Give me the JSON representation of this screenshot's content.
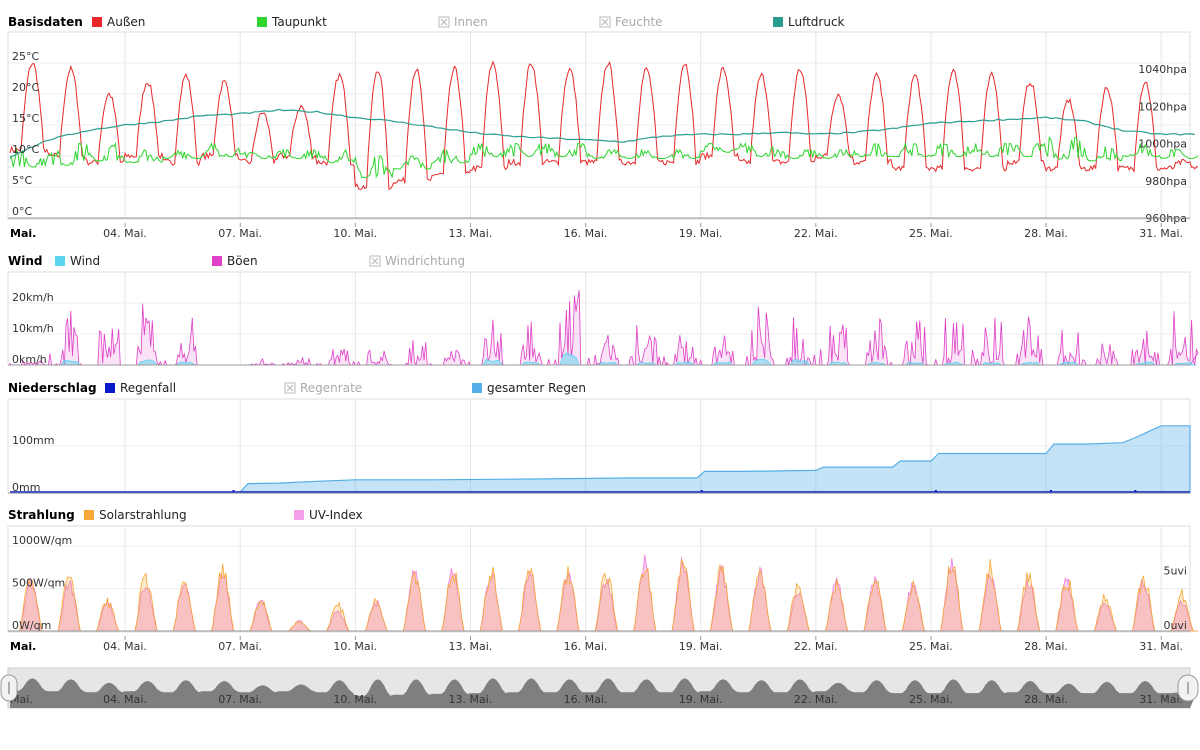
{
  "chart_data": [
    {
      "type": "line",
      "title": "Basisdaten",
      "legend": [
        {
          "name": "Außen",
          "color": "#e8282a",
          "visible": true
        },
        {
          "name": "Taupunkt",
          "color": "#2fd42f",
          "visible": true
        },
        {
          "name": "Innen",
          "color": "#bbbbbb",
          "visible": false
        },
        {
          "name": "Feuchte",
          "color": "#bbbbbb",
          "visible": false
        },
        {
          "name": "Luftdruck",
          "color": "#2a9d8f",
          "visible": true
        }
      ],
      "y_left": {
        "ticks": [
          "0°C",
          "5°C",
          "10°C",
          "15°C",
          "20°C",
          "25°C"
        ],
        "range": [
          0,
          30
        ]
      },
      "y_right": {
        "ticks": [
          "960hpa",
          "980hpa",
          "1000hpa",
          "1020hpa",
          "1040hpa"
        ],
        "range": [
          960,
          1060
        ]
      },
      "x": {
        "ticks": [
          "Mai.",
          "04. Mai.",
          "07. Mai.",
          "10. Mai.",
          "13. Mai.",
          "16. Mai.",
          "19. Mai.",
          "22. Mai.",
          "25. Mai.",
          "28. Mai.",
          "31. Mai."
        ],
        "range": [
          "01. Mai.",
          "31. Mai."
        ]
      },
      "series": [
        {
          "name": "Außen",
          "daily_low_high": [
            [
              11,
              25
            ],
            [
              10,
              24
            ],
            [
              9,
              20
            ],
            [
              10,
              22
            ],
            [
              9,
              23
            ],
            [
              10,
              22
            ],
            [
              9,
              17
            ],
            [
              10,
              18
            ],
            [
              9,
              23
            ],
            [
              5,
              24
            ],
            [
              6,
              24
            ],
            [
              7,
              24
            ],
            [
              8,
              25
            ],
            [
              9,
              25
            ],
            [
              9,
              24
            ],
            [
              9,
              25
            ],
            [
              9,
              24
            ],
            [
              9,
              25
            ],
            [
              10,
              24
            ],
            [
              9,
              23
            ],
            [
              9,
              24
            ],
            [
              10,
              20
            ],
            [
              9,
              23
            ],
            [
              8,
              23
            ],
            [
              8,
              24
            ],
            [
              8,
              23
            ],
            [
              9,
              22
            ],
            [
              8,
              19
            ],
            [
              8,
              21
            ],
            [
              8,
              22
            ],
            [
              8,
              9
            ]
          ]
        },
        {
          "name": "Taupunkt",
          "daily_range": [
            [
              7,
              11
            ],
            [
              7,
              12
            ],
            [
              8,
              12
            ],
            [
              8,
              11
            ],
            [
              9,
              11
            ],
            [
              9,
              12
            ],
            [
              9,
              11
            ],
            [
              9,
              11
            ],
            [
              8,
              11
            ],
            [
              5,
              10
            ],
            [
              7,
              10
            ],
            [
              8,
              11
            ],
            [
              9,
              12
            ],
            [
              9,
              12
            ],
            [
              9,
              12
            ],
            [
              9,
              11
            ],
            [
              9,
              11
            ],
            [
              9,
              11
            ],
            [
              10,
              12
            ],
            [
              9,
              12
            ],
            [
              9,
              11
            ],
            [
              9,
              11
            ],
            [
              9,
              12
            ],
            [
              9,
              12
            ],
            [
              9,
              12
            ],
            [
              9,
              12
            ],
            [
              9,
              12
            ],
            [
              8,
              13
            ],
            [
              8,
              12
            ],
            [
              9,
              12
            ],
            [
              9,
              11
            ]
          ]
        },
        {
          "name": "Luftdruck",
          "daily": [
            993,
            1002,
            1007,
            1010,
            1012,
            1015,
            1016,
            1018,
            1017,
            1014,
            1012,
            1009,
            1006,
            1004,
            1003,
            1002,
            1001,
            1004,
            1005,
            1005,
            1006,
            1005,
            1006,
            1008,
            1011,
            1012,
            1013,
            1014,
            1012,
            1007,
            1005
          ]
        }
      ]
    },
    {
      "type": "area",
      "title": "Wind",
      "legend": [
        {
          "name": "Wind",
          "color": "#5bd4ee",
          "visible": true
        },
        {
          "name": "Böen",
          "color": "#e040c8",
          "visible": true
        },
        {
          "name": "Windrichtung",
          "color": "#bbbbbb",
          "visible": false
        }
      ],
      "y": {
        "ticks": [
          "0km/h",
          "10km/h",
          "20km/h"
        ],
        "range": [
          0,
          30
        ]
      },
      "series": [
        {
          "name": "Böen",
          "daily_peak": [
            2,
            20,
            13,
            20,
            17,
            0,
            2,
            3,
            6,
            5,
            10,
            8,
            15,
            16,
            26,
            11,
            13,
            10,
            17,
            20,
            21,
            17,
            16,
            15,
            17,
            17,
            18,
            14,
            10,
            17,
            18
          ]
        },
        {
          "name": "Wind",
          "daily_peak": [
            0,
            2,
            0,
            2,
            1,
            0,
            0,
            0,
            0,
            0,
            0,
            0,
            2,
            1,
            4,
            1,
            1,
            1,
            1,
            2,
            2,
            1,
            1,
            1,
            1,
            1,
            1,
            1,
            0,
            1,
            1
          ]
        }
      ]
    },
    {
      "type": "area",
      "title": "Niederschlag",
      "legend": [
        {
          "name": "Regenfall",
          "color": "#0a1ac8",
          "visible": true
        },
        {
          "name": "Regenrate",
          "color": "#bbbbbb",
          "visible": false
        },
        {
          "name": "gesamter Regen",
          "color": "#55aee8",
          "visible": true
        }
      ],
      "y": {
        "ticks": [
          "0mm",
          "100mm"
        ],
        "range": [
          0,
          200
        ]
      },
      "series": [
        {
          "name": "gesamter Regen",
          "steps": [
            [
              1,
              0
            ],
            [
              6.0,
              0
            ],
            [
              6.8,
              2
            ],
            [
              7.0,
              2
            ],
            [
              7.2,
              20
            ],
            [
              8,
              21
            ],
            [
              9,
              25
            ],
            [
              10,
              28
            ],
            [
              12,
              28
            ],
            [
              15,
              30
            ],
            [
              17,
              32
            ],
            [
              18.9,
              32
            ],
            [
              19.1,
              46
            ],
            [
              20,
              46
            ],
            [
              22.0,
              48
            ],
            [
              22.2,
              55
            ],
            [
              24.0,
              55
            ],
            [
              24.2,
              68
            ],
            [
              25.0,
              68
            ],
            [
              25.2,
              84
            ],
            [
              28.0,
              84
            ],
            [
              28.2,
              104
            ],
            [
              29,
              104
            ],
            [
              30,
              107
            ],
            [
              30.3,
              117
            ],
            [
              31,
              143
            ]
          ]
        }
      ]
    },
    {
      "type": "area",
      "title": "Strahlung",
      "legend": [
        {
          "name": "Solarstrahlung",
          "color": "#f6a735",
          "visible": true
        },
        {
          "name": "UV-Index",
          "color": "#f4a0e8",
          "visible": true
        }
      ],
      "y_left": {
        "ticks": [
          "0W/qm",
          "500W/qm",
          "1000W/qm"
        ],
        "range": [
          0,
          1000
        ]
      },
      "y_right": {
        "ticks": [
          "0uvi",
          "5uvi"
        ],
        "range": [
          0,
          8.5
        ]
      },
      "x": {
        "ticks": [
          "Mai.",
          "04. Mai.",
          "07. Mai.",
          "10. Mai.",
          "13. Mai.",
          "16. Mai.",
          "19. Mai.",
          "22. Mai.",
          "25. Mai.",
          "28. Mai.",
          "31. Mai."
        ]
      },
      "series": [
        {
          "name": "Solarstrahlung",
          "daily_peak": [
            750,
            800,
            400,
            750,
            650,
            800,
            400,
            130,
            350,
            400,
            800,
            800,
            800,
            800,
            800,
            800,
            850,
            900,
            800,
            800,
            600,
            650,
            700,
            650,
            900,
            850,
            750,
            700,
            450,
            700,
            500
          ]
        },
        {
          "name": "UV-Index",
          "daily_peak": [
            5,
            5,
            3,
            5,
            5,
            6,
            3,
            1,
            2,
            3,
            6,
            6,
            6,
            6,
            6,
            5,
            7,
            7,
            6,
            6,
            4,
            5,
            5,
            5,
            7,
            6,
            5,
            5,
            3,
            5,
            3
          ]
        }
      ]
    }
  ],
  "navigator": {
    "ticks": [
      "Mai.",
      "04. Mai.",
      "07. Mai.",
      "10. Mai.",
      "13. Mai.",
      "16. Mai.",
      "19. Mai.",
      "22. Mai.",
      "25. Mai.",
      "28. Mai.",
      "31. Mai."
    ]
  }
}
